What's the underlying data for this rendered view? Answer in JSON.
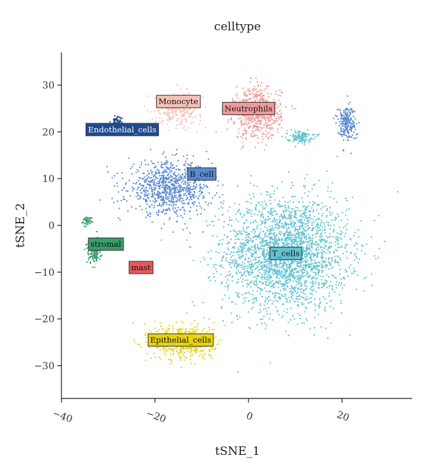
{
  "chart_data": {
    "type": "scatter",
    "title": "celltype",
    "xlabel": "tSNE_1",
    "ylabel": "tSNE_2",
    "xlim": [
      -40,
      35
    ],
    "ylim": [
      -37,
      37
    ],
    "xticks": [
      -40,
      -20,
      0,
      20
    ],
    "yticks": [
      -30,
      -20,
      -10,
      0,
      10,
      20,
      30
    ],
    "xtick_labels": [
      "−40",
      "−20",
      "0",
      "20"
    ],
    "ytick_labels": [
      "−30",
      "−20",
      "−10",
      "0",
      "10",
      "20",
      "30"
    ],
    "grid": false,
    "legend": "none",
    "clusters": [
      {
        "name": "T_cells",
        "color": "#62C2D3",
        "label_color": "#62C2D3",
        "text_color": "#111111",
        "center": [
          8,
          -6
        ],
        "spread": [
          12,
          11
        ],
        "n": 2600,
        "label_pos": [
          8,
          -6
        ]
      },
      {
        "name": "B_cell",
        "color": "#5A8BD2",
        "label_color": "#5A8BD2",
        "text_color": "#111111",
        "center": [
          -17,
          8
        ],
        "spread": [
          8,
          5
        ],
        "n": 900,
        "label_pos": [
          -10,
          11
        ]
      },
      {
        "name": "Neutrophils",
        "color": "#F09B9B",
        "label_color": "#F09B9B",
        "text_color": "#111111",
        "center": [
          2,
          24
        ],
        "spread": [
          4.5,
          5
        ],
        "n": 650,
        "label_pos": [
          0,
          25
        ]
      },
      {
        "name": "Monocyte",
        "color": "#F5C2B8",
        "label_color": "#F5C2B8",
        "text_color": "#111111",
        "center": [
          -15,
          25
        ],
        "spread": [
          4.5,
          3
        ],
        "n": 280,
        "label_pos": [
          -15,
          26.5
        ]
      },
      {
        "name": "Endothelial_cells",
        "color": "#1F4B8E",
        "label_color": "#1F4B8E",
        "text_color": "#ffffff",
        "center": [
          -28,
          22.5
        ],
        "spread": [
          1,
          0.9
        ],
        "n": 45,
        "label_pos": [
          -27,
          20.5
        ]
      },
      {
        "name": "stromal",
        "color": "#3A9E6A",
        "label_color": "#3A9E6A",
        "text_color": "#111111",
        "center": [
          -33,
          -5.5
        ],
        "spread": [
          1.4,
          2.3
        ],
        "n": 160,
        "label_pos": [
          -30.5,
          -4
        ]
      },
      {
        "name": "mast",
        "color": "#E8575B",
        "label_color": "#E8575B",
        "text_color": "#111111",
        "center": [
          -23,
          -8.5
        ],
        "spread": [
          0.7,
          0.7
        ],
        "n": 15,
        "label_pos": [
          -23,
          -9
        ]
      },
      {
        "name": "Epithelial_cells",
        "color": "#E8D213",
        "label_color": "#E8D213",
        "text_color": "#111111",
        "center": [
          -14,
          -25
        ],
        "spread": [
          6,
          3.5
        ],
        "n": 520,
        "label_pos": [
          -14.5,
          -24.5
        ]
      },
      {
        "name": "",
        "color": "#62C2D3",
        "label_color": "",
        "text_color": "",
        "center": [
          11,
          19
        ],
        "spread": [
          2.5,
          1.1
        ],
        "n": 130,
        "label_pos": null
      },
      {
        "name": "",
        "color": "#5A8BD2",
        "label_color": "",
        "text_color": "",
        "center": [
          21,
          22
        ],
        "spread": [
          1.8,
          3.5
        ],
        "n": 220,
        "label_pos": null
      },
      {
        "name": "",
        "color": "#3A9E6A",
        "label_color": "",
        "text_color": "",
        "center": [
          -34.5,
          1
        ],
        "spread": [
          1,
          0.8
        ],
        "n": 45,
        "label_pos": null
      }
    ]
  }
}
